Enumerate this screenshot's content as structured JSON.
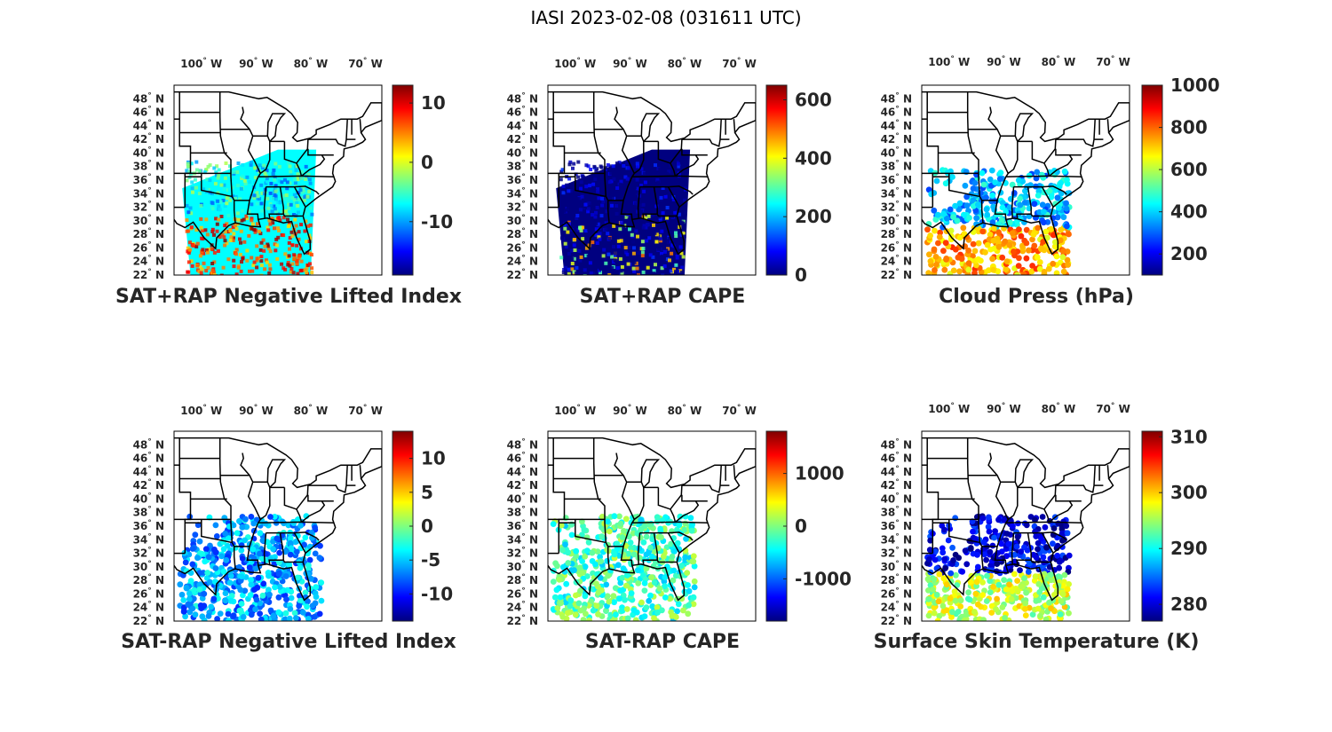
{
  "figure_title": "IASI 2023-02-08 (031611 UTC)",
  "degree_symbol": "°",
  "lon_labels": [
    {
      "value": 100,
      "text": "100",
      "hemi": "W"
    },
    {
      "value": 90,
      "text": "90",
      "hemi": "W"
    },
    {
      "value": 80,
      "text": "80",
      "hemi": "W"
    },
    {
      "value": 70,
      "text": "70",
      "hemi": "W"
    }
  ],
  "lat_labels": [
    {
      "value": 48,
      "text": "48",
      "hemi": "N"
    },
    {
      "value": 46,
      "text": "46",
      "hemi": "N"
    },
    {
      "value": 44,
      "text": "44",
      "hemi": "N"
    },
    {
      "value": 42,
      "text": "42",
      "hemi": "N"
    },
    {
      "value": 40,
      "text": "40",
      "hemi": "N"
    },
    {
      "value": 38,
      "text": "38",
      "hemi": "N"
    },
    {
      "value": 36,
      "text": "36",
      "hemi": "N"
    },
    {
      "value": 34,
      "text": "34",
      "hemi": "N"
    },
    {
      "value": 32,
      "text": "32",
      "hemi": "N"
    },
    {
      "value": 30,
      "text": "30",
      "hemi": "N"
    },
    {
      "value": 28,
      "text": "28",
      "hemi": "N"
    },
    {
      "value": 26,
      "text": "26",
      "hemi": "N"
    },
    {
      "value": 24,
      "text": "24",
      "hemi": "N"
    },
    {
      "value": 22,
      "text": "22",
      "hemi": "N"
    }
  ],
  "map_extent": {
    "lon_range": [
      -105,
      -67
    ],
    "lat_range": [
      22,
      50
    ]
  },
  "colormap": "jet",
  "colormap_colors": [
    "#00007f",
    "#0000ff",
    "#007fff",
    "#00ffff",
    "#7fff7f",
    "#ffff00",
    "#ff7f00",
    "#ff0000",
    "#7f0000"
  ],
  "boundary_color": "#000000",
  "panels": [
    {
      "title": "SAT+RAP Negative Lifted Index",
      "clim": [
        -19,
        13
      ],
      "ticks": [
        {
          "value": 10,
          "text": "10"
        },
        {
          "value": 0,
          "text": "0"
        },
        {
          "value": -10,
          "text": "-10"
        }
      ],
      "field": "swath",
      "typical_value": -7
    },
    {
      "title": "SAT+RAP CAPE",
      "clim": [
        0,
        650
      ],
      "ticks": [
        {
          "value": 600,
          "text": "600"
        },
        {
          "value": 400,
          "text": "400"
        },
        {
          "value": 200,
          "text": "200"
        },
        {
          "value": 0,
          "text": "0"
        }
      ],
      "field": "swath",
      "typical_value": 0
    },
    {
      "title": "Cloud Press (hPa)",
      "clim": [
        100,
        1000
      ],
      "ticks": [
        {
          "value": 1000,
          "text": "1000"
        },
        {
          "value": 800,
          "text": "800"
        },
        {
          "value": 600,
          "text": "600"
        },
        {
          "value": 400,
          "text": "400"
        },
        {
          "value": 200,
          "text": "200"
        }
      ],
      "field": "dots",
      "typical_value": 380
    },
    {
      "title": "SAT-RAP Negative Lifted Index",
      "clim": [
        -14,
        14
      ],
      "ticks": [
        {
          "value": 10,
          "text": "10"
        },
        {
          "value": 5,
          "text": "5"
        },
        {
          "value": 0,
          "text": "0"
        },
        {
          "value": -5,
          "text": "-5"
        },
        {
          "value": -10,
          "text": "-10"
        }
      ],
      "field": "dots",
      "typical_value": -6
    },
    {
      "title": "SAT-RAP CAPE",
      "clim": [
        -1800,
        1800
      ],
      "ticks": [
        {
          "value": 1000,
          "text": "1000"
        },
        {
          "value": 0,
          "text": "0"
        },
        {
          "value": -1000,
          "text": "-1000"
        }
      ],
      "field": "dots",
      "typical_value": -200
    },
    {
      "title": "Surface Skin Temperature (K)",
      "clim": [
        277,
        311
      ],
      "ticks": [
        {
          "value": 310,
          "text": "310"
        },
        {
          "value": 300,
          "text": "300"
        },
        {
          "value": 290,
          "text": "290"
        },
        {
          "value": 280,
          "text": "280"
        }
      ],
      "field": "dots",
      "typical_value": 292
    }
  ]
}
